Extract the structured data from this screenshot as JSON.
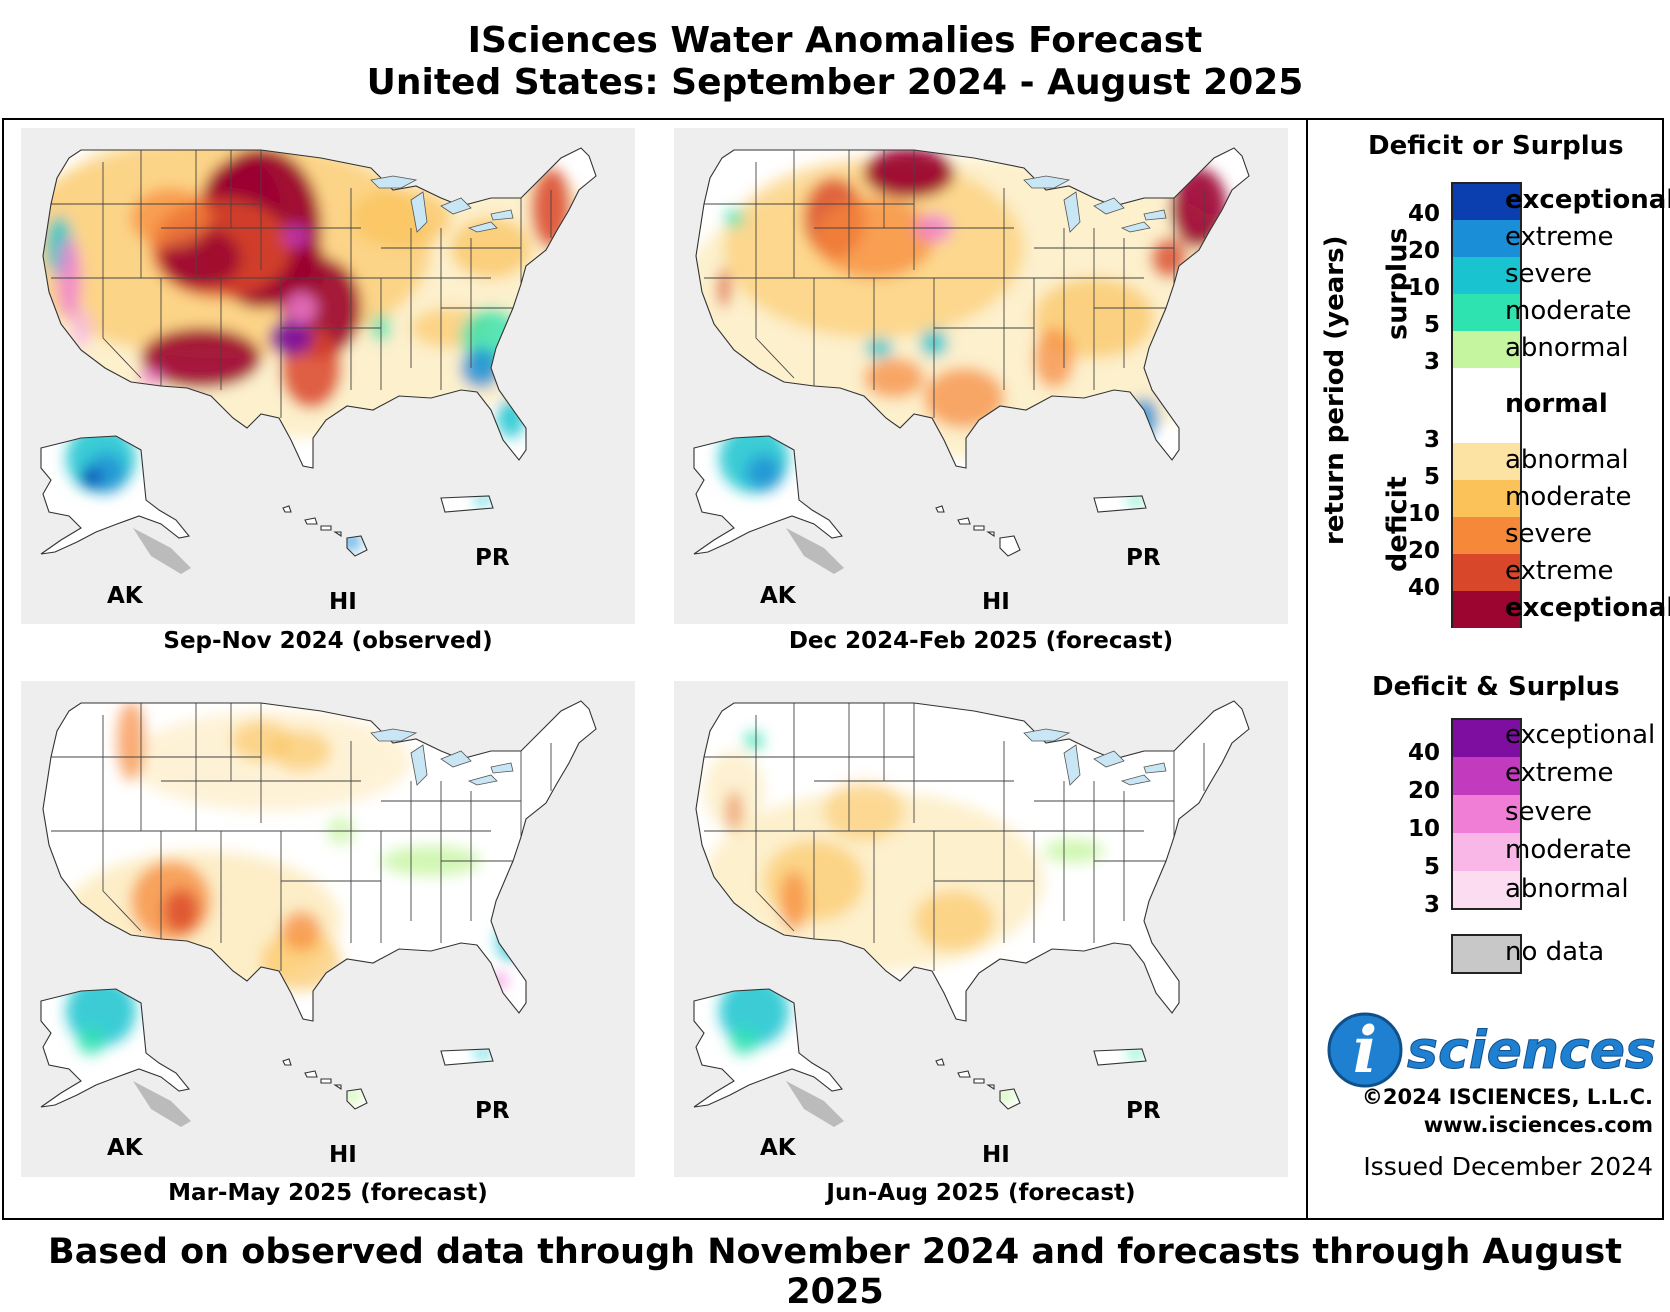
{
  "header": {
    "title_line1": "ISciences Water Anomalies Forecast",
    "title_line2": "United States: September 2024 - August 2025"
  },
  "panels": [
    {
      "caption": "Sep-Nov 2024 (observed)",
      "labels": {
        "ak": "AK",
        "hi": "HI",
        "pr": "PR"
      }
    },
    {
      "caption": "Dec 2024-Feb 2025 (forecast)",
      "labels": {
        "ak": "AK",
        "hi": "HI",
        "pr": "PR"
      }
    },
    {
      "caption": "Mar-May 2025 (forecast)",
      "labels": {
        "ak": "AK",
        "hi": "HI",
        "pr": "PR"
      }
    },
    {
      "caption": "Jun-Aug 2025 (forecast)",
      "labels": {
        "ak": "AK",
        "hi": "HI",
        "pr": "PR"
      }
    }
  ],
  "legend": {
    "deficit_or_surplus_title": "Deficit or Surplus",
    "axis_label": "return period (years)",
    "surplus_label": "surplus",
    "deficit_label": "deficit",
    "surplus_classes": [
      {
        "label": "exceptional",
        "color": "#0b3fb0",
        "bold": true
      },
      {
        "label": "extreme",
        "color": "#1a8ed6"
      },
      {
        "label": "severe",
        "color": "#19c3cf"
      },
      {
        "label": "moderate",
        "color": "#2ee3b0"
      },
      {
        "label": "abnormal",
        "color": "#c6f5a0"
      }
    ],
    "normal": {
      "label": "normal",
      "color": "#ffffff"
    },
    "deficit_classes": [
      {
        "label": "abnormal",
        "color": "#fce3a3"
      },
      {
        "label": "moderate",
        "color": "#fbc25a"
      },
      {
        "label": "severe",
        "color": "#f6883a"
      },
      {
        "label": "extreme",
        "color": "#d9472b"
      },
      {
        "label": "exceptional",
        "color": "#9c0530",
        "bold": true
      }
    ],
    "surplus_ticks": [
      "40",
      "20",
      "10",
      "5",
      "3"
    ],
    "deficit_ticks": [
      "3",
      "5",
      "10",
      "20",
      "40"
    ],
    "deficit_and_surplus_title": "Deficit & Surplus",
    "combined_classes": [
      {
        "label": "exceptional",
        "color": "#7d0ea0"
      },
      {
        "label": "extreme",
        "color": "#c23bbf"
      },
      {
        "label": "severe",
        "color": "#f07ed6"
      },
      {
        "label": "moderate",
        "color": "#f8b7e6"
      },
      {
        "label": "abnormal",
        "color": "#fcdcf0"
      }
    ],
    "combined_ticks": [
      "40",
      "20",
      "10",
      "5",
      "3"
    ],
    "no_data": {
      "label": "no data",
      "color": "#c8c8c8"
    }
  },
  "branding": {
    "logo_letter": "i",
    "logo_word": "sciences",
    "copyright": "©2024 ISCIENCES, L.L.C.",
    "website": "www.isciences.com",
    "issued": "Issued December 2024"
  },
  "footer": {
    "text": "Based on observed data through November 2024 and forecasts through August 2025"
  }
}
